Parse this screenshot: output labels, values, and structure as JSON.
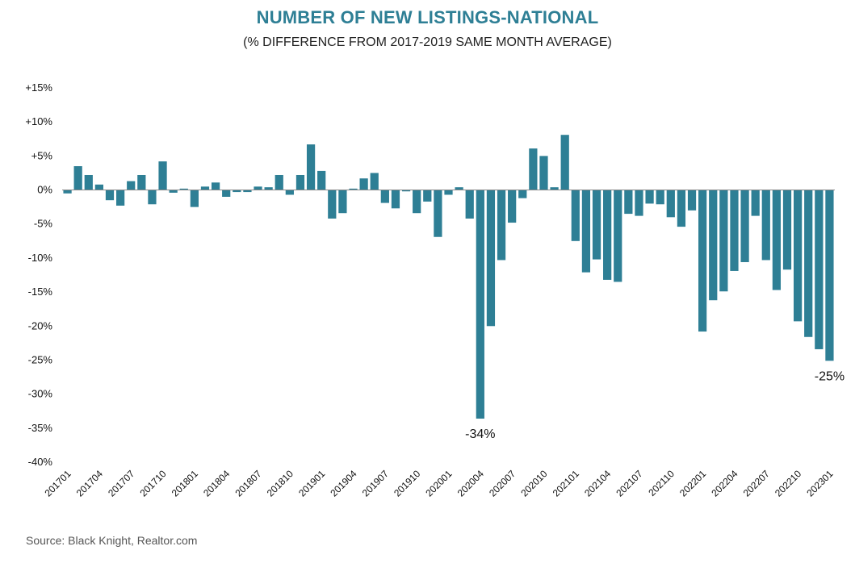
{
  "chart_data": {
    "type": "bar",
    "title": "NUMBER OF NEW LISTINGS-NATIONAL",
    "subtitle": "(% DIFFERENCE FROM 2017-2019 SAME MONTH AVERAGE)",
    "xlabel": "",
    "ylabel": "",
    "ylim": [
      -40,
      15
    ],
    "ytick_values": [
      15,
      10,
      5,
      0,
      -5,
      -10,
      -15,
      -20,
      -25,
      -30,
      -35,
      -40
    ],
    "ytick_labels": [
      "+15%",
      "+10%",
      "+5%",
      "0%",
      "-5%",
      "-10%",
      "-15%",
      "-20%",
      "-25%",
      "-30%",
      "-35%",
      "-40%"
    ],
    "grid": false,
    "bar_color": "#2e7f95",
    "categories": [
      "201701",
      "201702",
      "201703",
      "201704",
      "201705",
      "201706",
      "201707",
      "201708",
      "201709",
      "201710",
      "201711",
      "201712",
      "201801",
      "201802",
      "201803",
      "201804",
      "201805",
      "201806",
      "201807",
      "201808",
      "201809",
      "201810",
      "201811",
      "201812",
      "201901",
      "201902",
      "201903",
      "201904",
      "201905",
      "201906",
      "201907",
      "201908",
      "201909",
      "201910",
      "201911",
      "201912",
      "202001",
      "202002",
      "202003",
      "202004",
      "202005",
      "202006",
      "202007",
      "202008",
      "202009",
      "202010",
      "202011",
      "202012",
      "202101",
      "202102",
      "202103",
      "202104",
      "202105",
      "202106",
      "202107",
      "202108",
      "202109",
      "202110",
      "202111",
      "202112",
      "202201",
      "202202",
      "202203",
      "202204",
      "202205",
      "202206",
      "202207",
      "202208",
      "202209",
      "202210",
      "202211",
      "202212",
      "202301"
    ],
    "values": [
      -0.5,
      3.5,
      2.2,
      0.8,
      -1.5,
      -2.3,
      1.3,
      2.2,
      -2.1,
      4.2,
      -0.4,
      0.2,
      -2.5,
      0.5,
      1.1,
      -1.0,
      -0.3,
      -0.3,
      0.5,
      0.4,
      2.2,
      -0.7,
      2.2,
      6.7,
      2.8,
      -4.2,
      -3.4,
      0.2,
      1.7,
      2.5,
      -1.9,
      -2.7,
      -0.2,
      -3.4,
      -1.7,
      -6.9,
      -0.7,
      0.4,
      -4.2,
      -33.6,
      -20.0,
      -10.3,
      -4.8,
      -1.2,
      6.1,
      5.0,
      0.4,
      8.1,
      -7.5,
      -12.1,
      -10.2,
      -13.2,
      -13.5,
      -3.5,
      -3.8,
      -2.0,
      -2.1,
      -4.0,
      -5.4,
      -3.0,
      -20.8,
      -16.2,
      -14.9,
      -11.9,
      -10.6,
      -3.8,
      -10.3,
      -14.7,
      -11.7,
      -19.3,
      -21.6,
      -23.4,
      -25.1
    ],
    "x_tick_labels": [
      "201701",
      "201704",
      "201707",
      "201710",
      "201801",
      "201804",
      "201807",
      "201810",
      "201901",
      "201904",
      "201907",
      "201910",
      "202001",
      "202004",
      "202007",
      "202010",
      "202101",
      "202104",
      "202107",
      "202110",
      "202201",
      "202204",
      "202207",
      "202210",
      "202301"
    ],
    "annotations": [
      {
        "text": "-34%",
        "category": "202004"
      },
      {
        "text": "-25%",
        "category": "202301"
      }
    ]
  },
  "source": "Source: Black Knight, Realtor.com"
}
